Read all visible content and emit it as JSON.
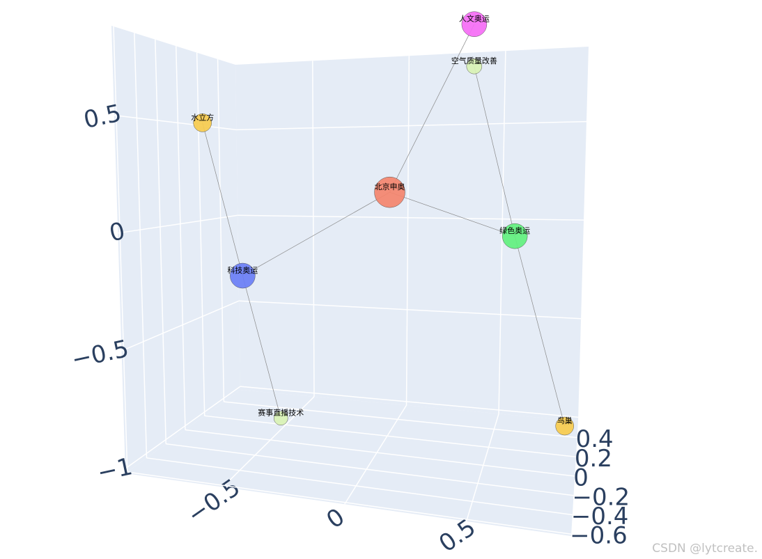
{
  "chart_data": {
    "type": "network3d",
    "nodes": [
      {
        "label": "北京申奥",
        "x": 0.05,
        "y": 0,
        "z": 0.18,
        "size": 44,
        "color": "#f4846c"
      },
      {
        "label": "人文奥运",
        "x": 0.48,
        "y": -0.6,
        "z": 0.87,
        "size": 36,
        "color": "#f56df5"
      },
      {
        "label": "科技奥运",
        "x": -0.62,
        "y": 0,
        "z": -0.24,
        "size": 36,
        "color": "#6a7ef5"
      },
      {
        "label": "绿色奥运",
        "x": 0.62,
        "y": 0,
        "z": 0,
        "size": 36,
        "color": "#62f07e"
      },
      {
        "label": "水立方",
        "x": -0.79,
        "y": 0,
        "z": 0.5,
        "size": 26,
        "color": "#f7cb4d"
      },
      {
        "label": "赛事直播技术",
        "x": -0.45,
        "y": 0,
        "z": -0.91,
        "size": 20,
        "color": "#d9f2b4"
      },
      {
        "label": "空气质量改善",
        "x": 0.42,
        "y": 0,
        "z": 0.75,
        "size": 22,
        "color": "#d9f2b4"
      },
      {
        "label": "鸟巢",
        "x": 0.875,
        "y": 0,
        "z": -0.81,
        "size": 26,
        "color": "#f7cb4d"
      }
    ],
    "edges": [
      [
        0,
        1
      ],
      [
        0,
        2
      ],
      [
        0,
        3
      ],
      [
        2,
        4
      ],
      [
        2,
        5
      ],
      [
        3,
        6
      ],
      [
        3,
        7
      ]
    ],
    "edge_color": "#888888",
    "wall_color": "#e5ecf6",
    "grid": true,
    "xlim": [
      -0.9,
      0.93
    ],
    "ylim": [
      -0.62,
      0.57
    ],
    "zlim": [
      -1.02,
      0.88
    ],
    "xticks": [
      {
        "value": -0.5,
        "label": "−0.5"
      },
      0,
      0.5
    ],
    "yticks": [
      0.4,
      0.2,
      0,
      {
        "value": -0.2,
        "label": "−0.2"
      },
      {
        "value": -0.4,
        "label": "−0.4"
      },
      {
        "value": -0.6,
        "label": "−0.6"
      }
    ],
    "zticks": [
      {
        "value": -1,
        "label": "−1"
      },
      {
        "value": -0.5,
        "label": "−0.5"
      },
      0,
      0.5
    ],
    "watermark": "CSDN @lytcreate."
  }
}
